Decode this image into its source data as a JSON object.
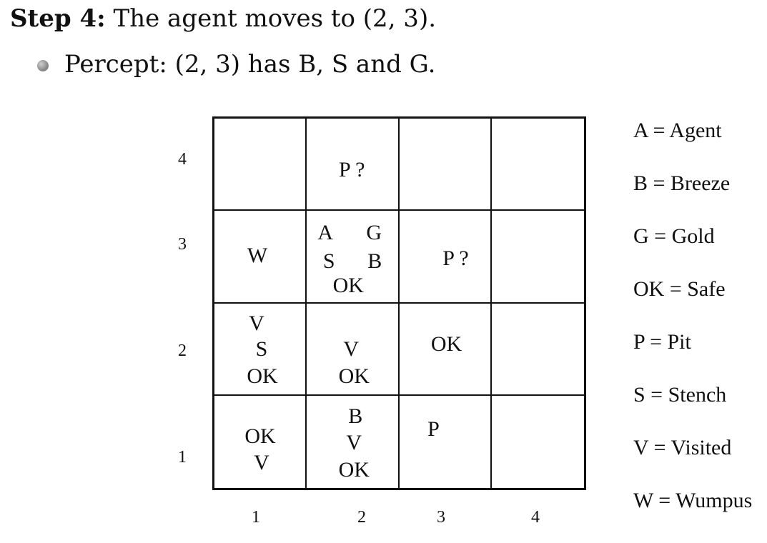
{
  "heading": {
    "label": "Step 4:",
    "text": "The agent moves to (2, 3)."
  },
  "bullet": {
    "text": "Percept: (2, 3) has B, S and G."
  },
  "grid": {
    "row_labels": [
      "4",
      "3",
      "2",
      "1"
    ],
    "col_labels": [
      "1",
      "2",
      "3",
      "4"
    ],
    "cells": {
      "r4c1": [],
      "r4c2": [
        "P ?"
      ],
      "r4c3": [],
      "r4c4": [],
      "r3c1": [
        "W"
      ],
      "r3c2": [
        "A",
        "G",
        "S",
        "B",
        "OK"
      ],
      "r3c3": [
        "P ?"
      ],
      "r3c4": [],
      "r2c1": [
        "V",
        "S",
        "OK"
      ],
      "r2c2": [
        "V",
        "OK"
      ],
      "r2c3": [
        "OK"
      ],
      "r2c4": [],
      "r1c1": [
        "OK",
        "V"
      ],
      "r1c2": [
        "B",
        "V",
        "OK"
      ],
      "r1c3": [
        "P"
      ],
      "r1c4": []
    }
  },
  "legend": [
    "A = Agent",
    "B = Breeze",
    "G = Gold",
    "OK = Safe",
    "P = Pit",
    "S = Stench",
    "V = Visited",
    "W = Wumpus"
  ]
}
